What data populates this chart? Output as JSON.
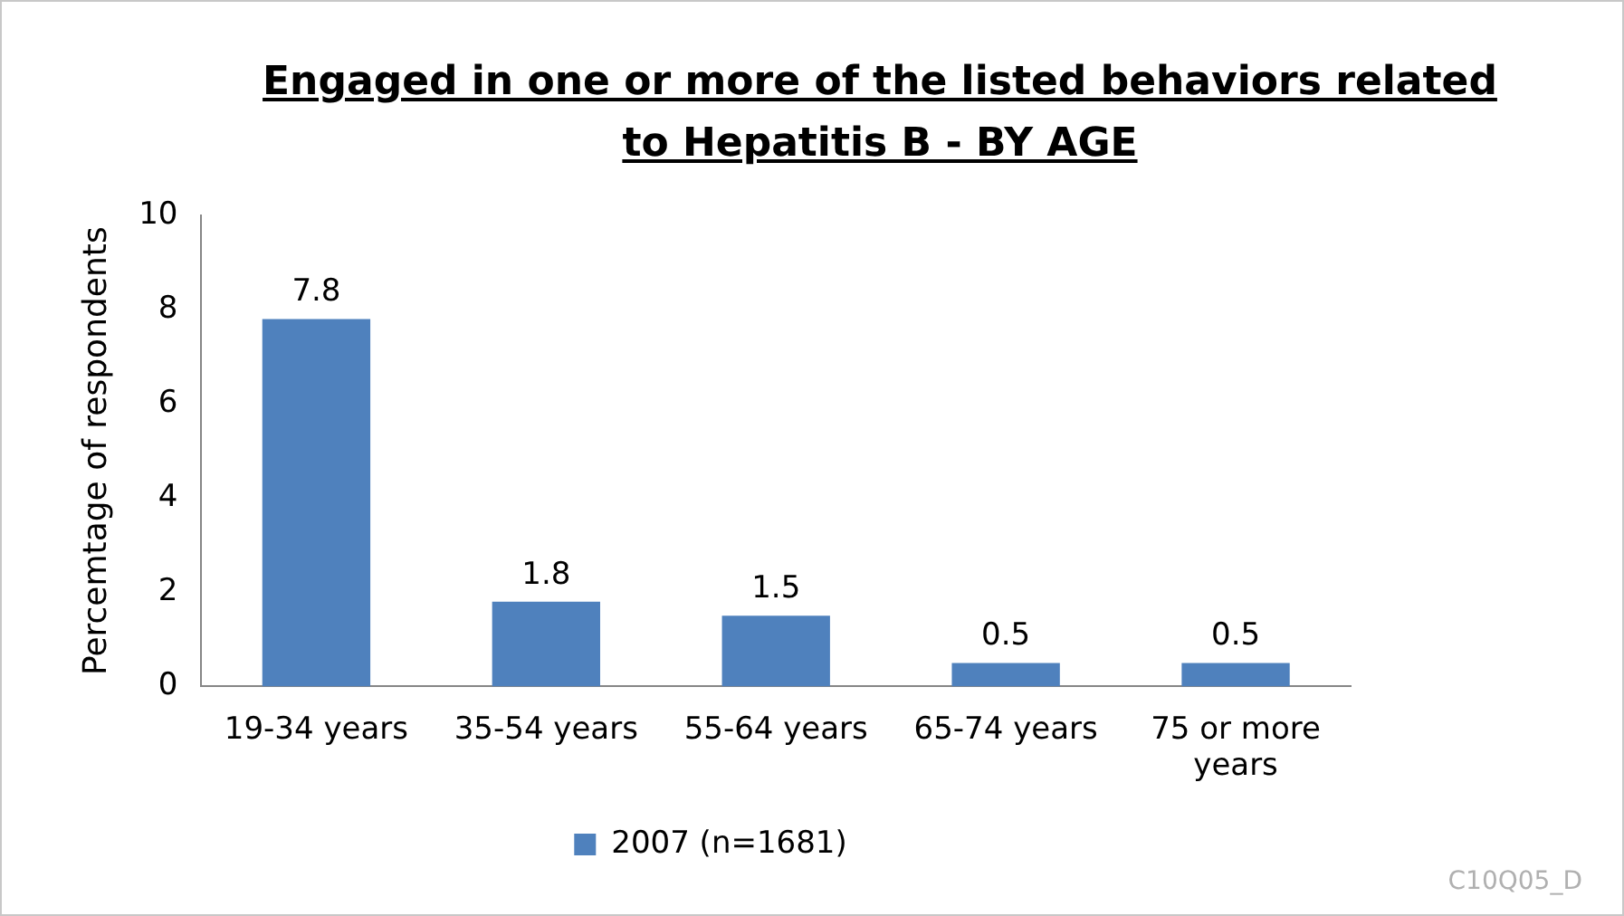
{
  "chart_data": {
    "type": "bar",
    "title": "Engaged in one or more of the listed behaviors related to Hepatitis B - BY AGE",
    "ylabel": "Percemtage of respondents",
    "categories": [
      "19-34 years",
      "35-54 years",
      "55-64 years",
      "65-74 years",
      "75 or more years"
    ],
    "series": [
      {
        "name": "2007 (n=1681)",
        "color": "#4f81bd",
        "values": [
          7.8,
          1.8,
          1.5,
          0.5,
          0.5
        ]
      }
    ],
    "ylim": [
      0,
      10
    ],
    "yticks": [
      0,
      2,
      4,
      6,
      8,
      10
    ],
    "grid": false,
    "legend": "bottom",
    "data_labels": true,
    "annotations": [
      "C10Q05_D"
    ]
  }
}
